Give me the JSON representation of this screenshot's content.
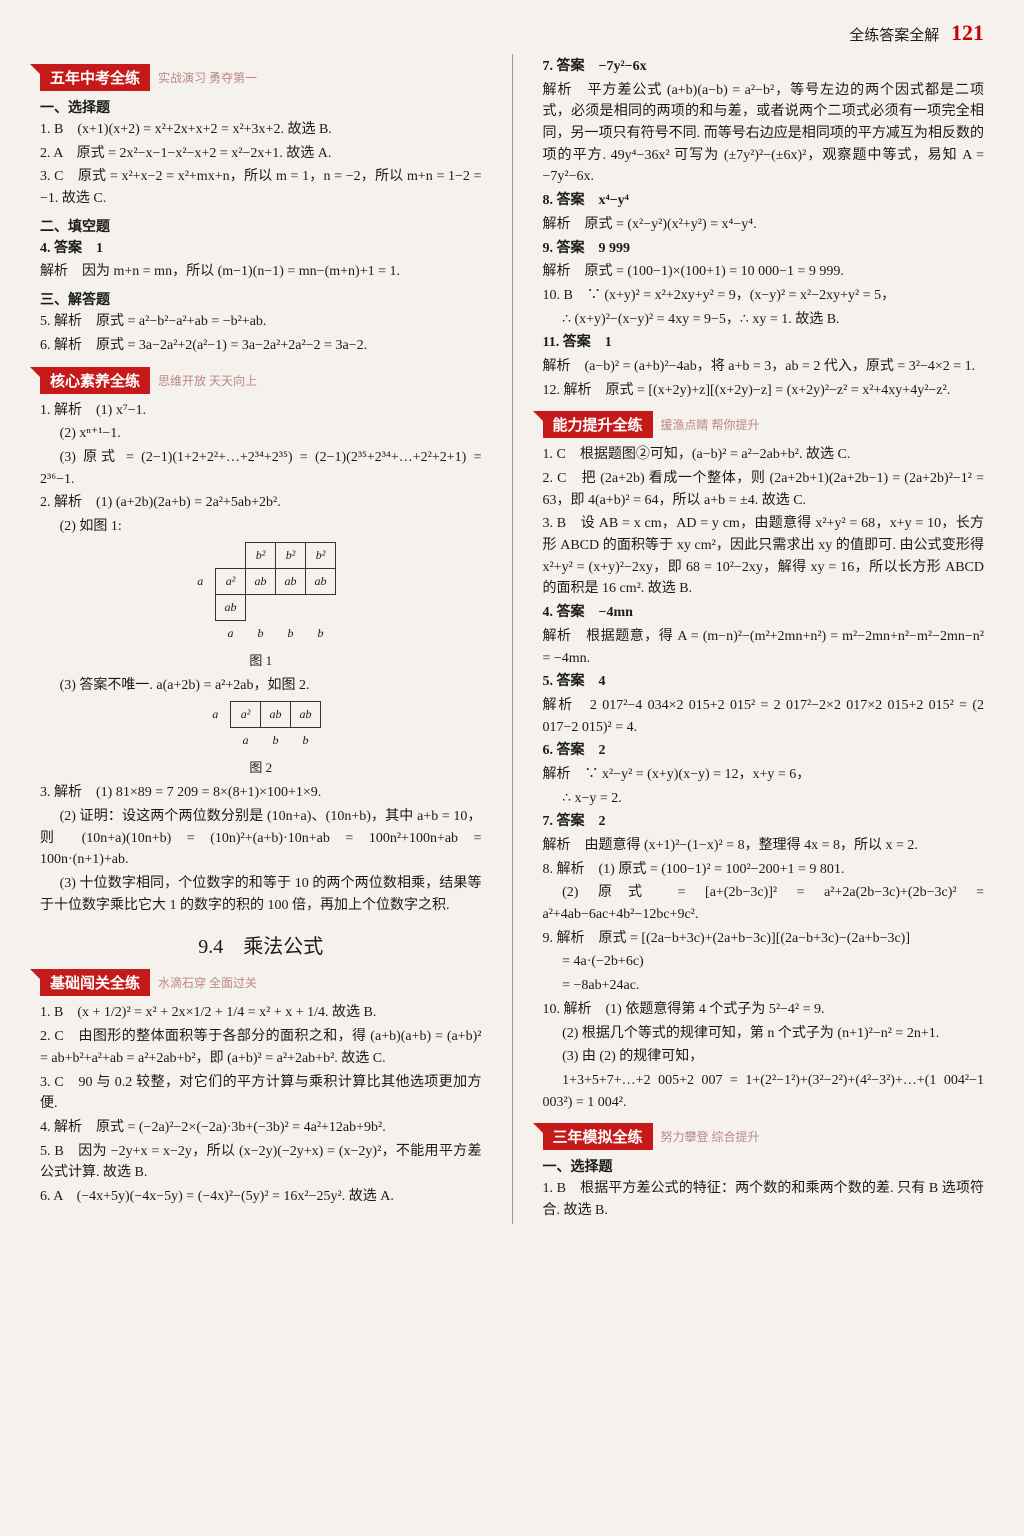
{
  "header": {
    "title": "全练答案全解",
    "page_number": "121"
  },
  "sections": {
    "s1": {
      "title": "五年中考全练",
      "subtitle": "实战演习 勇夺第一"
    },
    "s2": {
      "title": "核心素养全练",
      "subtitle": "思维开放 天天向上"
    },
    "s3": {
      "title": "基础闯关全练",
      "subtitle": "水滴石穿 全面过关"
    },
    "s4": {
      "title": "能力提升全练",
      "subtitle": "援渔点睛 帮你提升"
    },
    "s5": {
      "title": "三年模拟全练",
      "subtitle": "努力攀登 综合提升"
    }
  },
  "headings": {
    "h1": "一、选择题",
    "h2": "二、填空题",
    "h3": "三、解答题",
    "chapter": "9.4　乘法公式",
    "fig1": "图 1",
    "fig2": "图 2"
  },
  "left": {
    "p1": "1. B　(x+1)(x+2) = x²+2x+x+2 = x²+3x+2. 故选 B.",
    "p2": "2. A　原式 = 2x²−x−1−x²−x+2 = x²−2x+1. 故选 A.",
    "p3": "3. C　原式 = x²+x−2 = x²+mx+n，所以 m = 1，n = −2，所以 m+n = 1−2 = −1. 故选 C.",
    "p4": "4. 答案　1",
    "p5": "解析　因为 m+n = mn，所以 (m−1)(n−1) = mn−(m+n)+1 = 1.",
    "p6": "5. 解析　原式 = a²−b²−a²+ab = −b²+ab.",
    "p7": "6. 解析　原式 = 3a−2a²+2(a²−1) = 3a−2a²+2a²−2 = 3a−2.",
    "p8": "1. 解析　(1) x⁷−1.",
    "p9": "(2) xⁿ⁺¹−1.",
    "p10": "(3) 原式 = (2−1)(1+2+2²+…+2³⁴+2³⁵) = (2−1)(2³⁵+2³⁴+…+2²+2+1) = 2³⁶−1.",
    "p11": "2. 解析　(1) (a+2b)(2a+b) = 2a²+5ab+2b².",
    "p12": "(2) 如图 1:",
    "p13": "(3) 答案不唯一. a(a+2b) = a²+2ab，如图 2.",
    "p14": "3. 解析　(1) 81×89 = 7 209 = 8×(8+1)×100+1×9.",
    "p15": "(2) 证明：设这两个两位数分别是 (10n+a)、(10n+b)，其中 a+b = 10，则 (10n+a)(10n+b) = (10n)²+(a+b)·10n+ab = 100n²+100n+ab = 100n·(n+1)+ab.",
    "p16": "(3) 十位数字相同，个位数字的和等于 10 的两个两位数相乘，结果等于十位数字乘比它大 1 的数字的积的 100 倍，再加上个位数字之积.",
    "p17": "1. B　(x + 1/2)² = x² + 2x×1/2 + 1/4 = x² + x + 1/4. 故选 B.",
    "p18": "2. C　由图形的整体面积等于各部分的面积之和，得 (a+b)(a+b) = (a+b)² = ab+b²+a²+ab = a²+2ab+b²，即 (a+b)² = a²+2ab+b². 故选 C.",
    "p19": "3. C　90 与 0.2 较整，对它们的平方计算与乘积计算比其他选项更加方便.",
    "p20": "4. 解析　原式 = (−2a)²−2×(−2a)·3b+(−3b)² = 4a²+12ab+9b².",
    "p21": "5. B　因为 −2y+x = x−2y，所以 (x−2y)(−2y+x) = (x−2y)²，不能用平方差公式计算. 故选 B.",
    "p22": "6. A　(−4x+5y)(−4x−5y) = (−4x)²−(5y)² = 16x²−25y². 故选 A."
  },
  "right": {
    "p1": "7. 答案　−7y²−6x",
    "p2": "解析　平方差公式 (a+b)(a−b) = a²−b²，等号左边的两个因式都是二项式，必须是相同的两项的和与差，或者说两个二项式必须有一项完全相同，另一项只有符号不同. 而等号右边应是相同项的平方减互为相反数的项的平方. 49y⁴−36x² 可写为 (±7y²)²−(±6x)²，观察题中等式，易知 A = −7y²−6x.",
    "p3": "8. 答案　x⁴−y⁴",
    "p4": "解析　原式 = (x²−y²)(x²+y²) = x⁴−y⁴.",
    "p5": "9. 答案　9 999",
    "p6": "解析　原式 = (100−1)×(100+1) = 10 000−1 = 9 999.",
    "p7": "10. B　∵ (x+y)² = x²+2xy+y² = 9，(x−y)² = x²−2xy+y² = 5，",
    "p8": "∴ (x+y)²−(x−y)² = 4xy = 9−5，∴ xy = 1. 故选 B.",
    "p9": "11. 答案　1",
    "p10": "解析　(a−b)² = (a+b)²−4ab，将 a+b = 3，ab = 2 代入，原式 = 3²−4×2 = 1.",
    "p11": "12. 解析　原式 = [(x+2y)+z][(x+2y)−z] = (x+2y)²−z² = x²+4xy+4y²−z².",
    "p12": "1. C　根据题图②可知，(a−b)² = a²−2ab+b². 故选 C.",
    "p13": "2. C　把 (2a+2b) 看成一个整体，则 (2a+2b+1)(2a+2b−1) = (2a+2b)²−1² = 63，即 4(a+b)² = 64，所以 a+b = ±4. 故选 C.",
    "p14": "3. B　设 AB = x cm，AD = y cm，由题意得 x²+y² = 68，x+y = 10，长方形 ABCD 的面积等于 xy cm²，因此只需求出 xy 的值即可. 由公式变形得 x²+y² = (x+y)²−2xy，即 68 = 10²−2xy，解得 xy = 16，所以长方形 ABCD 的面积是 16 cm². 故选 B.",
    "p15": "4. 答案　−4mn",
    "p16": "解析　根据题意，得 A = (m−n)²−(m²+2mn+n²) = m²−2mn+n²−m²−2mn−n² = −4mn.",
    "p17": "5. 答案　4",
    "p18": "解析　2 017²−4 034×2 015+2 015² = 2 017²−2×2 017×2 015+2 015² = (2 017−2 015)² = 4.",
    "p19": "6. 答案　2",
    "p20": "解析　∵ x²−y² = (x+y)(x−y) = 12，x+y = 6，",
    "p21": "∴ x−y = 2.",
    "p22": "7. 答案　2",
    "p23": "解析　由题意得 (x+1)²−(1−x)² = 8，整理得 4x = 8，所以 x = 2.",
    "p24": "8. 解析　(1) 原式 = (100−1)² = 100²−200+1 = 9 801.",
    "p25": "(2) 原式 = [a+(2b−3c)]² = a²+2a(2b−3c)+(2b−3c)² = a²+4ab−6ac+4b²−12bc+9c².",
    "p26": "9. 解析　原式 = [(2a−b+3c)+(2a+b−3c)][(2a−b+3c)−(2a+b−3c)]",
    "p27": "= 4a·(−2b+6c)",
    "p28": "= −8ab+24ac.",
    "p29": "10. 解析　(1) 依题意得第 4 个式子为 5²−4² = 9.",
    "p30": "(2) 根据几个等式的规律可知，第 n 个式子为 (n+1)²−n² = 2n+1.",
    "p31": "(3) 由 (2) 的规律可知，",
    "p32": "1+3+5+7+…+2 005+2 007 = 1+(2²−1²)+(3²−2²)+(4²−3²)+…+(1 004²−1 003²) = 1 004².",
    "p33": "1. B　根据平方差公式的特征：两个数的和乘两个数的差. 只有 B 选项符合. 故选 B."
  }
}
